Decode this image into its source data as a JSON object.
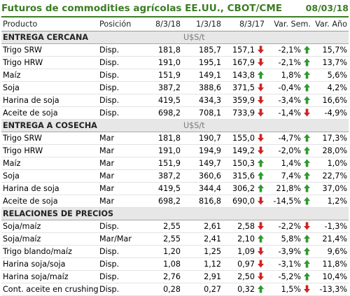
{
  "title": "Futuros de commodities agrícolas EE.UU., CBOT/CME",
  "date": "08/03/18",
  "columns": [
    "Producto",
    "Posición",
    "8/3/18",
    "1/3/18",
    "8/3/17",
    "Var. Sem.",
    "Var. Año"
  ],
  "sections": [
    {
      "title": "ENTREGA CERCANA",
      "unit": "U$S/t",
      "rows": [
        {
          "name": "Trigo SRW",
          "pos": "Disp.",
          "v1": "181,8",
          "v2": "185,7",
          "v3": "157,1",
          "a1": "down",
          "vs": "-2,1%",
          "a2": "up",
          "va": "15,7%"
        },
        {
          "name": "Trigo HRW",
          "pos": "Disp.",
          "v1": "191,0",
          "v2": "195,1",
          "v3": "167,9",
          "a1": "down",
          "vs": "-2,1%",
          "a2": "up",
          "va": "13,7%"
        },
        {
          "name": "Maíz",
          "pos": "Disp.",
          "v1": "151,9",
          "v2": "149,1",
          "v3": "143,8",
          "a1": "up",
          "vs": "1,8%",
          "a2": "up",
          "va": "5,6%"
        },
        {
          "name": "Soja",
          "pos": "Disp.",
          "v1": "387,2",
          "v2": "388,6",
          "v3": "371,5",
          "a1": "down",
          "vs": "-0,4%",
          "a2": "up",
          "va": "4,2%"
        },
        {
          "name": "Harina de soja",
          "pos": "Disp.",
          "v1": "419,5",
          "v2": "434,3",
          "v3": "359,9",
          "a1": "down",
          "vs": "-3,4%",
          "a2": "up",
          "va": "16,6%"
        },
        {
          "name": "Aceite de soja",
          "pos": "Disp.",
          "v1": "698,2",
          "v2": "708,1",
          "v3": "733,9",
          "a1": "down",
          "vs": "-1,4%",
          "a2": "down",
          "va": "-4,9%"
        }
      ]
    },
    {
      "title": "ENTREGA A COSECHA",
      "unit": "U$S/t",
      "rows": [
        {
          "name": "Trigo SRW",
          "pos": "Mar",
          "v1": "181,8",
          "v2": "190,7",
          "v3": "155,0",
          "a1": "down",
          "vs": "-4,7%",
          "a2": "up",
          "va": "17,3%"
        },
        {
          "name": "Trigo HRW",
          "pos": "Mar",
          "v1": "191,0",
          "v2": "194,9",
          "v3": "149,2",
          "a1": "down",
          "vs": "-2,0%",
          "a2": "up",
          "va": "28,0%"
        },
        {
          "name": "Maíz",
          "pos": "Mar",
          "v1": "151,9",
          "v2": "149,7",
          "v3": "150,3",
          "a1": "up",
          "vs": "1,4%",
          "a2": "up",
          "va": "1,0%"
        },
        {
          "name": "Soja",
          "pos": "Mar",
          "v1": "387,2",
          "v2": "360,6",
          "v3": "315,6",
          "a1": "up",
          "vs": "7,4%",
          "a2": "up",
          "va": "22,7%"
        },
        {
          "name": "Harina de soja",
          "pos": "Mar",
          "v1": "419,5",
          "v2": "344,4",
          "v3": "306,2",
          "a1": "up",
          "vs": "21,8%",
          "a2": "up",
          "va": "37,0%"
        },
        {
          "name": "Aceite de soja",
          "pos": "Mar",
          "v1": "698,2",
          "v2": "816,8",
          "v3": "690,0",
          "a1": "down",
          "vs": "-14,5%",
          "a2": "up",
          "va": "1,2%"
        }
      ]
    },
    {
      "title": "RELACIONES DE PRECIOS",
      "unit": "",
      "rows": [
        {
          "name": "Soja/maíz",
          "pos": "Disp.",
          "v1": "2,55",
          "v2": "2,61",
          "v3": "2,58",
          "a1": "down",
          "vs": "-2,2%",
          "a2": "down",
          "va": "-1,3%"
        },
        {
          "name": "Soja/maíz",
          "pos": "Mar/Mar",
          "v1": "2,55",
          "v2": "2,41",
          "v3": "2,10",
          "a1": "up",
          "vs": "5,8%",
          "a2": "up",
          "va": "21,4%"
        },
        {
          "name": "Trigo blando/maíz",
          "pos": "Disp.",
          "v1": "1,20",
          "v2": "1,25",
          "v3": "1,09",
          "a1": "down",
          "vs": "-3,9%",
          "a2": "up",
          "va": "9,6%"
        },
        {
          "name": "Harina soja/soja",
          "pos": "Disp.",
          "v1": "1,08",
          "v2": "1,12",
          "v3": "0,97",
          "a1": "down",
          "vs": "-3,1%",
          "a2": "up",
          "va": "11,8%"
        },
        {
          "name": "Harina soja/maíz",
          "pos": "Disp.",
          "v1": "2,76",
          "v2": "2,91",
          "v3": "2,50",
          "a1": "down",
          "vs": "-5,2%",
          "a2": "up",
          "va": "10,4%"
        },
        {
          "name": "Cont. aceite en crushing",
          "pos": "Disp.",
          "v1": "0,28",
          "v2": "0,27",
          "v3": "0,32",
          "a1": "up",
          "vs": "1,5%",
          "a2": "down",
          "va": "-13,3%"
        }
      ]
    }
  ],
  "colors": {
    "up": "#2e9a2e",
    "down": "#d02323",
    "title": "#3b7d23"
  },
  "icons": {
    "up": "green-up-arrow-icon",
    "down": "red-down-arrow-icon"
  }
}
